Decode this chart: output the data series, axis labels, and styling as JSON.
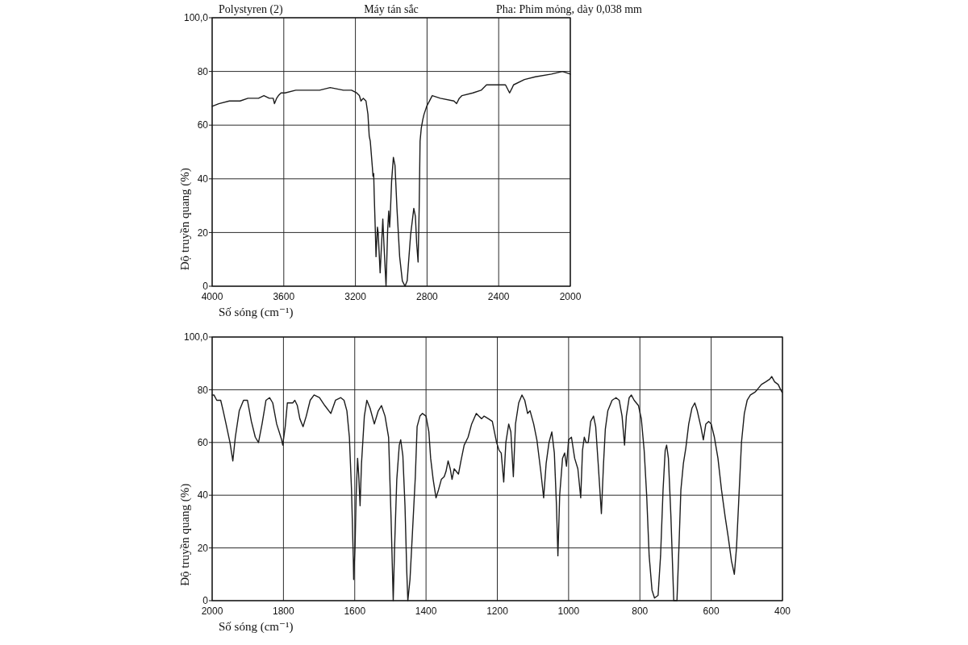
{
  "chart_data": [
    {
      "type": "line",
      "title": "Polystyren (2)",
      "annotations": [
        "Máy tán sắc",
        "Pha: Phim mỏng, dày 0,038 mm"
      ],
      "xlabel": "Số sóng (cm⁻¹)",
      "ylabel": "Độ truyền quang (%)",
      "color": "#1c1c1c",
      "grid": true,
      "xlim": [
        4000,
        2000
      ],
      "xticks": [
        4000,
        3600,
        3200,
        2800,
        2400,
        2000
      ],
      "ylim": [
        0,
        100
      ],
      "yticks": [
        0,
        20,
        40,
        60,
        80,
        {
          "value": 100,
          "label": "100,0"
        }
      ],
      "x": [
        4000,
        3963,
        3904,
        3844,
        3800,
        3741,
        3711,
        3681,
        3659,
        3652,
        3640,
        3630,
        3615,
        3593,
        3533,
        3459,
        3400,
        3341,
        3267,
        3222,
        3193,
        3178,
        3169,
        3156,
        3141,
        3130,
        3123,
        3117,
        3105,
        3102,
        3098,
        3095,
        3089,
        3085,
        3077,
        3073,
        3062,
        3047,
        3041,
        3029,
        3020,
        3014,
        3009,
        3005,
        2998,
        2988,
        2979,
        2968,
        2953,
        2938,
        2923,
        2911,
        2892,
        2874,
        2865,
        2858,
        2850,
        2844,
        2839,
        2832,
        2824,
        2817,
        2802,
        2771,
        2726,
        2650,
        2635,
        2620,
        2605,
        2544,
        2498,
        2468,
        2408,
        2362,
        2339,
        2324,
        2317,
        2256,
        2195,
        2105,
        2044,
        2000
      ],
      "values": [
        67,
        68,
        69,
        69,
        70,
        70,
        71,
        70,
        70,
        68,
        70,
        71,
        72,
        72,
        73,
        73,
        73,
        74,
        73,
        73,
        72,
        71,
        69,
        70,
        69,
        64,
        56,
        54,
        44,
        41,
        42,
        34,
        21,
        11,
        22,
        20,
        5,
        25,
        16,
        0,
        21,
        28,
        22,
        27,
        39,
        48,
        45,
        29,
        11,
        2,
        0,
        2,
        19,
        29,
        26,
        16,
        9,
        29,
        54,
        59,
        62,
        64,
        67,
        71,
        70,
        69,
        68,
        70,
        71,
        72,
        73,
        75,
        75,
        75,
        72,
        74,
        75,
        77,
        78,
        79,
        80,
        79
      ]
    },
    {
      "type": "line",
      "xlabel": "Số sóng (cm⁻¹)",
      "ylabel": "Độ truyền quang (%)",
      "color": "#1c1c1c",
      "grid": true,
      "xlim": [
        2000,
        400
      ],
      "xticks": [
        2000,
        1800,
        1600,
        1400,
        1200,
        1000,
        800,
        600,
        400
      ],
      "ylim": [
        0,
        100
      ],
      "yticks": [
        0,
        20,
        40,
        60,
        80,
        {
          "value": 100,
          "label": "100,0"
        }
      ],
      "x": [
        2000,
        1995,
        1987,
        1976,
        1969,
        1961,
        1950,
        1942,
        1935,
        1924,
        1912,
        1901,
        1890,
        1879,
        1870,
        1860,
        1849,
        1839,
        1830,
        1819,
        1805,
        1802,
        1795,
        1789,
        1781,
        1774,
        1768,
        1761,
        1754,
        1745,
        1736,
        1725,
        1714,
        1699,
        1684,
        1667,
        1654,
        1639,
        1630,
        1622,
        1615,
        1609,
        1604,
        1603,
        1599,
        1596,
        1592,
        1589,
        1585,
        1581,
        1573,
        1566,
        1557,
        1545,
        1534,
        1525,
        1515,
        1505,
        1498,
        1492,
        1488,
        1482,
        1475,
        1471,
        1465,
        1459,
        1454,
        1451,
        1445,
        1438,
        1430,
        1425,
        1417,
        1410,
        1400,
        1392,
        1387,
        1380,
        1372,
        1365,
        1357,
        1349,
        1344,
        1338,
        1332,
        1327,
        1321,
        1315,
        1309,
        1302,
        1293,
        1282,
        1272,
        1259,
        1252,
        1244,
        1237,
        1225,
        1214,
        1202,
        1195,
        1189,
        1182,
        1176,
        1168,
        1162,
        1155,
        1149,
        1140,
        1131,
        1123,
        1115,
        1108,
        1098,
        1089,
        1078,
        1070,
        1063,
        1055,
        1047,
        1040,
        1034,
        1030,
        1025,
        1017,
        1011,
        1006,
        1000,
        992,
        983,
        974,
        966,
        961,
        956,
        951,
        945,
        938,
        930,
        924,
        917,
        908,
        902,
        897,
        890,
        878,
        867,
        858,
        850,
        843,
        838,
        830,
        824,
        816,
        804,
        796,
        788,
        781,
        774,
        766,
        759,
        749,
        742,
        735,
        729,
        725,
        720,
        713,
        705,
        696,
        690,
        685,
        678,
        671,
        663,
        654,
        646,
        639,
        629,
        622,
        615,
        607,
        600,
        591,
        581,
        571,
        561,
        552,
        543,
        535,
        529,
        523,
        515,
        507,
        499,
        490,
        478,
        471,
        459,
        447,
        436,
        430,
        422,
        412,
        405,
        401
      ],
      "values": [
        78,
        78,
        76,
        76,
        72,
        67,
        60,
        53,
        62,
        72,
        76,
        76,
        68,
        62,
        60,
        67,
        76,
        77,
        75,
        67,
        61,
        59,
        66,
        75,
        75,
        75,
        76,
        74,
        69,
        66,
        70,
        76,
        78,
        77,
        74,
        71,
        76,
        77,
        76,
        72,
        62,
        42,
        16,
        8,
        21,
        40,
        54,
        48,
        36,
        52,
        70,
        76,
        73,
        67,
        72,
        74,
        70,
        62,
        31,
        0,
        21,
        46,
        59,
        61,
        55,
        36,
        11,
        0,
        8,
        26,
        47,
        66,
        70,
        71,
        70,
        64,
        54,
        46,
        39,
        42,
        46,
        47,
        49,
        53,
        50,
        46,
        50,
        49,
        48,
        53,
        59,
        62,
        67,
        71,
        70,
        69,
        70,
        69,
        68,
        60,
        57,
        56,
        45,
        60,
        67,
        64,
        47,
        67,
        75,
        78,
        76,
        71,
        72,
        67,
        61,
        49,
        39,
        52,
        60,
        64,
        56,
        36,
        17,
        40,
        54,
        56,
        51,
        61,
        62,
        54,
        50,
        39,
        57,
        62,
        60,
        60,
        68,
        70,
        66,
        52,
        33,
        52,
        65,
        72,
        76,
        77,
        76,
        70,
        59,
        70,
        77,
        78,
        76,
        74,
        69,
        57,
        40,
        17,
        4,
        1,
        2,
        17,
        42,
        57,
        59,
        54,
        32,
        0,
        0,
        22,
        42,
        52,
        58,
        67,
        73,
        75,
        72,
        66,
        61,
        67,
        68,
        67,
        62,
        54,
        42,
        32,
        24,
        15,
        10,
        20,
        37,
        60,
        71,
        76,
        78,
        79,
        80,
        82,
        83,
        84,
        85,
        83,
        82,
        80,
        79
      ]
    }
  ]
}
